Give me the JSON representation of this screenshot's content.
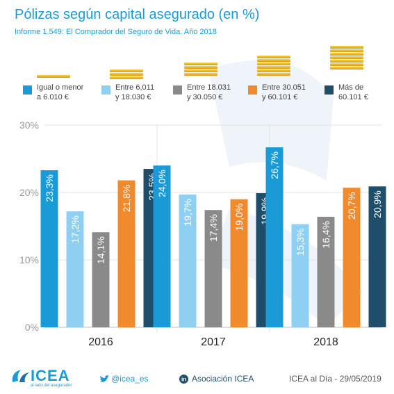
{
  "title": "Pólizas según capital asegurado (en %)",
  "subtitle": "Informe 1.549: El Comprador del Seguro de Vida. Año 2018",
  "legend": [
    {
      "line1": "Igual o menor",
      "line2": "a 6.010 €",
      "color": "#1a9ad6"
    },
    {
      "line1": "Entre 6,011",
      "line2": "y 18.030 €",
      "color": "#8fd0f2"
    },
    {
      "line1": "Entre 18.031",
      "line2": "y 30.050 €",
      "color": "#8a8a8a"
    },
    {
      "line1": "Entre 30.051",
      "line2": "y 60.101 €",
      "color": "#f08a2c"
    },
    {
      "line1": "Más de",
      "line2": "60.101 €",
      "color": "#1f4e6b"
    }
  ],
  "chart_data": {
    "type": "bar",
    "categories": [
      "2016",
      "2017",
      "2018"
    ],
    "series": [
      {
        "name": "Igual o menor a 6.010 €",
        "color": "#1a9ad6",
        "values": [
          23.3,
          24.0,
          26.7
        ],
        "labels": [
          "23,3%",
          "24,0%",
          "26,7%"
        ]
      },
      {
        "name": "Entre 6,011 y 18.030 €",
        "color": "#8fd0f2",
        "values": [
          17.2,
          19.7,
          15.3
        ],
        "labels": [
          "17,2%",
          "19,7%",
          "15,3%"
        ]
      },
      {
        "name": "Entre 18.031 y 30.050 €",
        "color": "#8a8a8a",
        "values": [
          14.1,
          17.4,
          16.4
        ],
        "labels": [
          "14,1%",
          "17,4%",
          "16,4%"
        ]
      },
      {
        "name": "Entre 30.051 y 60.101 €",
        "color": "#f08a2c",
        "values": [
          21.8,
          19.0,
          20.7
        ],
        "labels": [
          "21,8%",
          "19,0%",
          "20,7%"
        ]
      },
      {
        "name": "Más de 60.101 €",
        "color": "#1f4e6b",
        "values": [
          23.5,
          19.9,
          20.9
        ],
        "labels": [
          "23,5%",
          "19,9%",
          "20,9%"
        ]
      }
    ],
    "ylim": [
      0,
      30
    ],
    "yticks": [
      0,
      10,
      20,
      30
    ],
    "ytick_labels": [
      "0%",
      "10%",
      "20%",
      "30%"
    ],
    "grid": true,
    "legend_position": "top"
  },
  "footer": {
    "logo_text": "ICEA",
    "logo_tagline": "al lado del asegurador",
    "twitter": "@icea_es",
    "linkedin": "Asociación ICEA",
    "date_text": "ICEA al Día - 29/05/2019"
  }
}
